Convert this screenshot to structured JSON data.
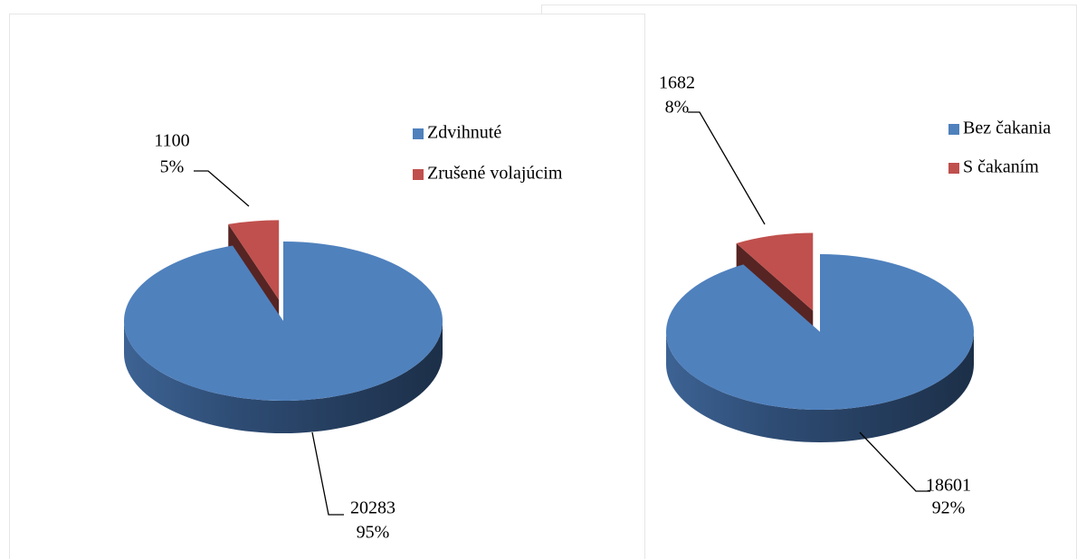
{
  "chart_data": [
    {
      "type": "pie",
      "categories": [
        "Zdvihnuté",
        "Zrušené volajúcim"
      ],
      "values": [
        20283,
        1100
      ],
      "percent_labels": [
        "95%",
        "5%"
      ],
      "colors": [
        "#4f81bd",
        "#c0504d"
      ],
      "legend": "right"
    },
    {
      "type": "pie",
      "categories": [
        "Bez čakania",
        "S čakaním"
      ],
      "values": [
        18601,
        1682
      ],
      "percent_labels": [
        "92%",
        "8%"
      ],
      "colors": [
        "#4f81bd",
        "#c0504d"
      ],
      "legend": "right"
    }
  ]
}
